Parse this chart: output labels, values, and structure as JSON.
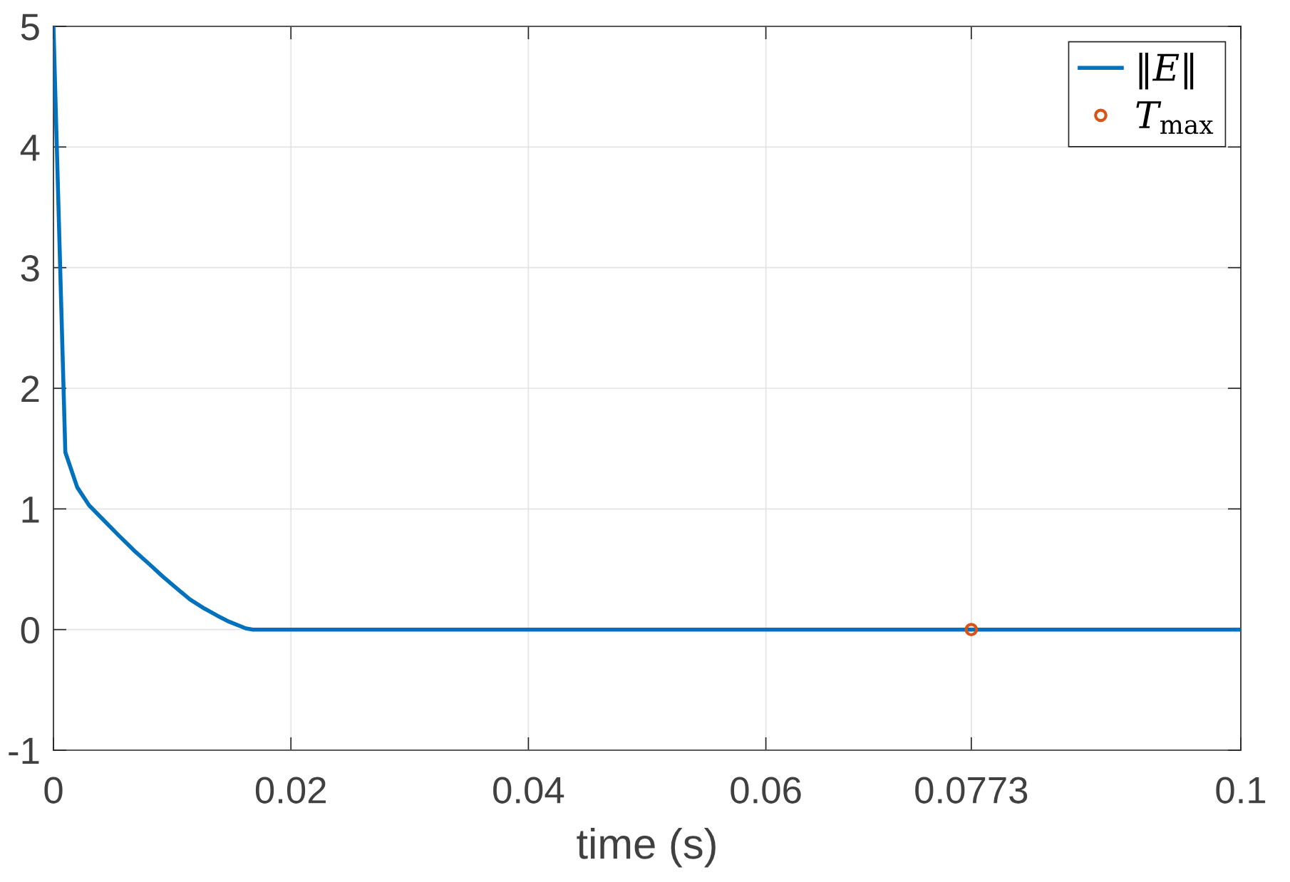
{
  "chart_data": {
    "type": "line",
    "xlabel": "time (s)",
    "x": [
      0,
      0.001,
      0.002,
      0.003,
      0.0044,
      0.0055,
      0.0069,
      0.0081,
      0.0092,
      0.0104,
      0.0115,
      0.0127,
      0.0138,
      0.0148,
      0.0162,
      0.0168,
      0.1
    ],
    "series": [
      {
        "name": "‖E‖",
        "color": "#0072bd",
        "values": [
          5,
          1.47,
          1.18,
          1.03,
          0.89,
          0.78,
          0.645,
          0.54,
          0.44,
          0.34,
          0.25,
          0.175,
          0.115,
          0.065,
          0.01,
          0,
          0
        ]
      },
      {
        "name": "T$_{max}$",
        "type": "scatter",
        "color": "#d95319",
        "marker": "circle",
        "x": [
          0.0773
        ],
        "values": [
          0
        ]
      }
    ],
    "xlim": [
      0,
      0.1
    ],
    "xticks": [
      0,
      0.02,
      0.04,
      0.06,
      0.0773,
      0.1
    ],
    "ylim": [
      -1,
      5
    ],
    "yticks": [
      -1,
      0,
      1,
      2,
      3,
      4,
      5
    ],
    "grid": true,
    "legend": "top right"
  }
}
